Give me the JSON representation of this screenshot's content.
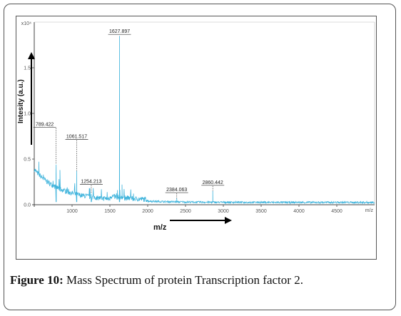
{
  "caption": {
    "label": "Figure 10:",
    "text": " Mass Spectrum of protein Transcription factor 2."
  },
  "chart_data": {
    "type": "line",
    "xlabel": "m/z",
    "ylabel": "Intesity (a.u.)",
    "x_unit_label": "m/z",
    "y_exponent_label": "x10⁴",
    "xlim": [
      500,
      5000
    ],
    "ylim": [
      0,
      2.0
    ],
    "x_ticks": [
      1000,
      1500,
      2000,
      2500,
      3000,
      3500,
      4000,
      4500
    ],
    "y_ticks": [
      0.0,
      0.5,
      1.0,
      1.5
    ],
    "y_tick_labels": [
      "0.0",
      "0.5",
      "1.0",
      "1.5"
    ],
    "grid": false,
    "line_color": "#40b4dc",
    "peaks": [
      {
        "mz": 789.422,
        "label": "789.422",
        "intensity": 0.44
      },
      {
        "mz": 1061.517,
        "label": "1061.517",
        "intensity": 0.37
      },
      {
        "mz": 1254.213,
        "label": "1254.213",
        "intensity": 0.12
      },
      {
        "mz": 1627.897,
        "label": "1627.897",
        "intensity": 1.85
      },
      {
        "mz": 2384.063,
        "label": "2384.063",
        "intensity": 0.07
      },
      {
        "mz": 2860.442,
        "label": "2860.442",
        "intensity": 0.15
      }
    ]
  }
}
